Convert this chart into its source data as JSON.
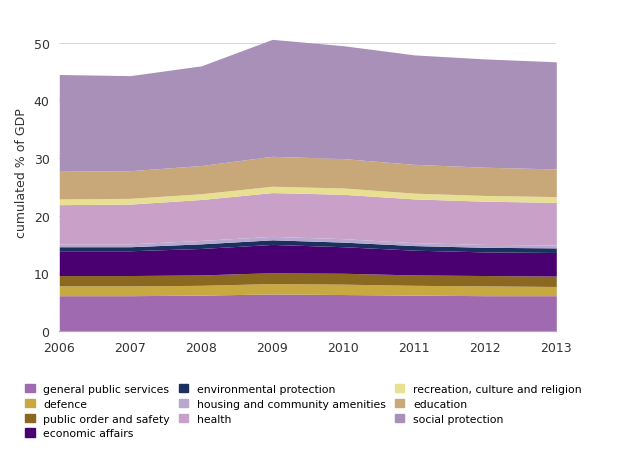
{
  "years": [
    2006,
    2007,
    2008,
    2009,
    2010,
    2011,
    2012,
    2013
  ],
  "series_order": [
    "general public services",
    "defence",
    "public order and safety",
    "economic affairs",
    "environmental protection",
    "housing and community amenities",
    "health",
    "recreation, culture and religion",
    "education",
    "social protection"
  ],
  "series": {
    "general public services": {
      "values": [
        6.1,
        6.1,
        6.2,
        6.4,
        6.3,
        6.2,
        6.1,
        6.1
      ],
      "color": "#a06ab0"
    },
    "defence": {
      "values": [
        1.7,
        1.7,
        1.7,
        1.8,
        1.8,
        1.7,
        1.7,
        1.6
      ],
      "color": "#c8a840"
    },
    "public order and safety": {
      "values": [
        1.8,
        1.8,
        1.8,
        1.9,
        1.9,
        1.8,
        1.8,
        1.8
      ],
      "color": "#8b6820"
    },
    "economic affairs": {
      "values": [
        4.3,
        4.3,
        4.6,
        4.9,
        4.6,
        4.3,
        4.1,
        4.1
      ],
      "color": "#4a0070"
    },
    "environmental protection": {
      "values": [
        0.7,
        0.7,
        0.8,
        0.8,
        0.8,
        0.8,
        0.8,
        0.8
      ],
      "color": "#1c3060"
    },
    "housing and community amenities": {
      "values": [
        0.5,
        0.5,
        0.6,
        0.6,
        0.6,
        0.5,
        0.5,
        0.5
      ],
      "color": "#b8a8d0"
    },
    "health": {
      "values": [
        6.8,
        6.9,
        7.1,
        7.6,
        7.7,
        7.6,
        7.5,
        7.4
      ],
      "color": "#c8a0c8"
    },
    "recreation, culture and religion": {
      "values": [
        1.0,
        1.0,
        1.0,
        1.1,
        1.1,
        1.0,
        1.0,
        1.0
      ],
      "color": "#e8e090"
    },
    "education": {
      "values": [
        4.8,
        4.8,
        4.9,
        5.2,
        5.1,
        5.0,
        4.9,
        4.8
      ],
      "color": "#c8a878"
    },
    "social protection": {
      "values": [
        16.8,
        16.5,
        17.3,
        20.3,
        19.6,
        19.0,
        18.8,
        18.6
      ],
      "color": "#a890b8"
    }
  },
  "ylabel": "cumulated % of GDP",
  "ylim": [
    0,
    55
  ],
  "yticks": [
    0,
    10,
    20,
    30,
    40,
    50
  ],
  "background_color": "#ffffff",
  "legend_order": [
    "general public services",
    "defence",
    "public order and safety",
    "economic affairs",
    "environmental protection",
    "housing and community amenities",
    "health",
    "recreation, culture and religion",
    "education",
    "social protection"
  ]
}
